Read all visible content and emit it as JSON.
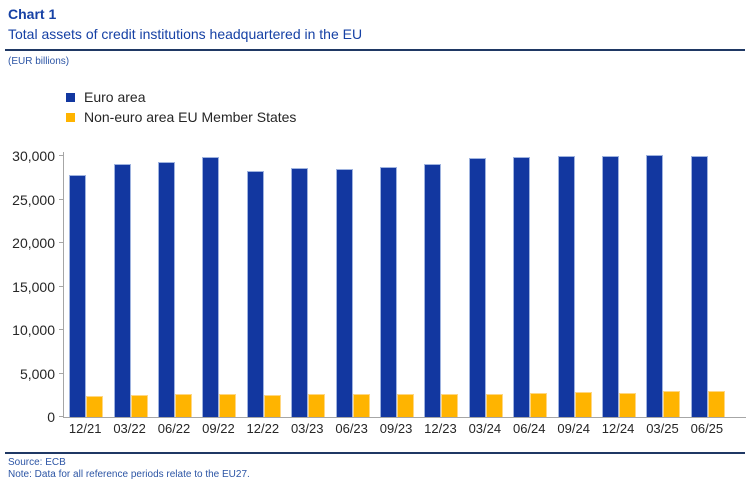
{
  "header": {
    "title": "Chart 1",
    "subtitle": "Total assets of credit institutions headquartered in the EU",
    "units": "(EUR billions)"
  },
  "footer": {
    "source": "Source: ECB",
    "note": "Note: Data for all reference periods relate to the EU27."
  },
  "colors": {
    "accent_text": "#1641A5",
    "euro_area_bar": "#1237A0",
    "euro_area_border": "#9FB3DF",
    "non_euro_bar": "#FFB400",
    "non_euro_border": "#FFD782",
    "axis": "#A6A6A6"
  },
  "chart_data": {
    "type": "bar",
    "title": "Total assets of credit institutions headquartered in the EU",
    "subtitle_units": "EUR billions",
    "categories": [
      "12/21",
      "03/22",
      "06/22",
      "09/22",
      "12/22",
      "03/23",
      "06/23",
      "09/23",
      "12/23",
      "03/24",
      "06/24",
      "09/24",
      "12/24",
      "03/25",
      "06/25"
    ],
    "series": [
      {
        "name": "Euro area",
        "color": "#1237A0",
        "border": "#9FB3DF",
        "values": [
          27900,
          29100,
          29300,
          29950,
          28350,
          28700,
          28600,
          28800,
          29100,
          29850,
          29950,
          30050,
          30000,
          30100,
          30050
        ]
      },
      {
        "name": "Non-euro area EU Member States",
        "color": "#FFB400",
        "border": "#FFD782",
        "values": [
          2450,
          2550,
          2650,
          2700,
          2500,
          2650,
          2650,
          2650,
          2650,
          2700,
          2800,
          2850,
          2750,
          2950,
          2950
        ]
      }
    ],
    "ylim": [
      0,
      30500
    ],
    "yticks": [
      {
        "value": 0,
        "label": "0"
      },
      {
        "value": 5000,
        "label": "5,000"
      },
      {
        "value": 10000,
        "label": "10,000"
      },
      {
        "value": 15000,
        "label": "15,000"
      },
      {
        "value": 20000,
        "label": "20,000"
      },
      {
        "value": 25000,
        "label": "25,000"
      },
      {
        "value": 30000,
        "label": "30,000"
      }
    ],
    "grid": false,
    "legend_position": "top-left"
  }
}
